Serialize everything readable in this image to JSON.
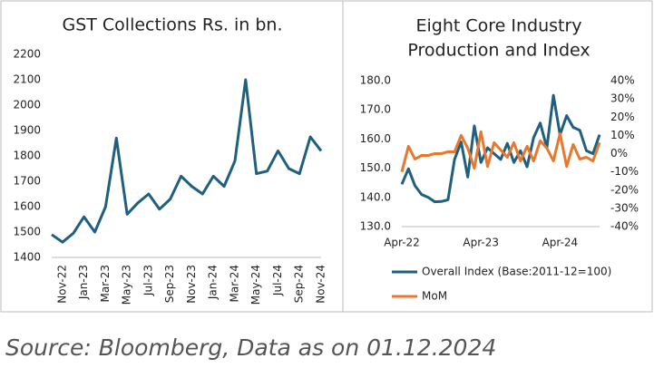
{
  "chart_data": [
    {
      "type": "line",
      "title": "GST Collections Rs. in bn.",
      "categories": [
        null,
        "Nov-22",
        null,
        "Jan-23",
        null,
        "Mar-23",
        null,
        "May-23",
        null,
        "Jul-23",
        null,
        "Sep-23",
        null,
        "Nov-23",
        null,
        "Jan-24",
        null,
        "Mar-24",
        null,
        "May-24",
        null,
        "Jul-24",
        null,
        "Sep-24",
        null,
        "Nov-24"
      ],
      "series": [
        {
          "color": "#1f5f7f",
          "values": [
            1490,
            1460,
            1495,
            1560,
            1500,
            1600,
            1870,
            1570,
            1615,
            1650,
            1590,
            1630,
            1720,
            1680,
            1650,
            1720,
            1680,
            1780,
            2100,
            1730,
            1740,
            1820,
            1750,
            1730,
            1875,
            1820
          ]
        }
      ],
      "ylim": [
        1400,
        2200
      ],
      "yticks": [
        1400,
        1500,
        1600,
        1700,
        1800,
        1900,
        2000,
        2100,
        2200
      ]
    },
    {
      "type": "line",
      "title": [
        "Eight Core Industry",
        "Production and Index"
      ],
      "categories": [
        "Apr-22",
        null,
        null,
        null,
        null,
        null,
        null,
        null,
        null,
        null,
        null,
        null,
        "Apr-23",
        null,
        null,
        null,
        null,
        null,
        null,
        null,
        null,
        null,
        null,
        null,
        "Apr-24",
        null,
        null,
        null,
        null,
        null,
        null
      ],
      "series": [
        {
          "name": "Overall Index (Base:2011-12=100)",
          "color": "#1f5f7f",
          "values": [
            144.5,
            149.8,
            144,
            141,
            140,
            138.5,
            138.6,
            139.2,
            153,
            159,
            147,
            164.5,
            152,
            157,
            155,
            153,
            158.5,
            152,
            156,
            150.5,
            160.5,
            165.5,
            157,
            175,
            161.5,
            168,
            164,
            163,
            156,
            155,
            161.5
          ]
        },
        {
          "name": "MoM",
          "color": "#e8782f",
          "axis": "y2",
          "values": [
            -10,
            4,
            -3,
            -1,
            -1,
            0,
            0,
            1,
            1,
            10,
            3,
            -8,
            12,
            -7,
            6,
            2,
            -2,
            6,
            -4,
            4,
            -4,
            7,
            3,
            -4,
            11,
            -7,
            5,
            -3,
            -2,
            -4,
            6
          ]
        }
      ],
      "ylim": [
        130,
        180
      ],
      "yticks": [
        {
          "value": 130,
          "label": "130.0"
        },
        {
          "value": 140,
          "label": "140.0"
        },
        {
          "value": 150,
          "label": "150.0"
        },
        {
          "value": 160,
          "label": "160.0"
        },
        {
          "value": 170,
          "label": "170.0"
        },
        {
          "value": 180,
          "label": "180.0"
        }
      ],
      "y2lim": [
        -40,
        40
      ],
      "y2ticks": [
        {
          "value": -40,
          "label": "-40%"
        },
        {
          "value": -30,
          "label": "-30%"
        },
        {
          "value": -20,
          "label": "-20%"
        },
        {
          "value": -10,
          "label": "-10%"
        },
        {
          "value": 0,
          "label": "0%"
        },
        {
          "value": 10,
          "label": "10%"
        },
        {
          "value": 20,
          "label": "20%"
        },
        {
          "value": 30,
          "label": "30%"
        },
        {
          "value": 40,
          "label": "40%"
        }
      ],
      "legend": "bottom"
    }
  ],
  "source": "Source: Bloomberg, Data as on 01.12.2024"
}
